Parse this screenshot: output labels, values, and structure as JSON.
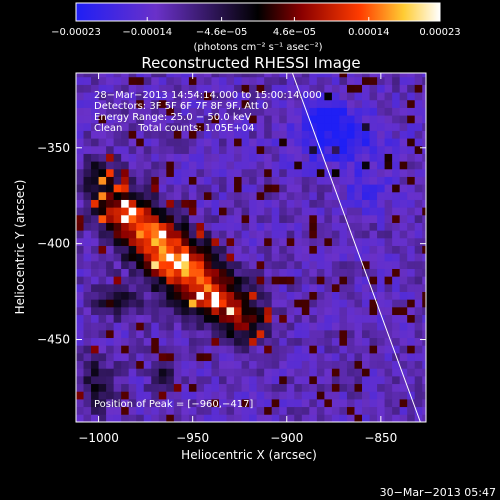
{
  "chart_data": {
    "type": "heatmap",
    "title": "Reconstructed RHESSI Image",
    "xlabel": "Heliocentric X (arcsec)",
    "ylabel": "Heliocentric Y (arcsec)",
    "xlim": [
      -1012,
      -826
    ],
    "ylim": [
      -493,
      -311
    ],
    "x_ticks": [
      -1000,
      -950,
      -900,
      -850
    ],
    "y_ticks": [
      -450,
      -400,
      -350
    ],
    "x_tick_labels": [
      "−1000",
      "−950",
      "−900",
      "−850"
    ],
    "y_tick_labels": [
      "−450",
      "−400",
      "−350"
    ],
    "colorbar": {
      "min": -0.00023,
      "max": 0.00023,
      "ticks": [
        -0.00023,
        -0.00014,
        -4.6e-05,
        4.6e-05,
        0.00014,
        0.00023
      ],
      "tick_labels": [
        "−0.00023",
        "−0.00014",
        "−4.6e−05",
        "4.6e−05",
        "0.00014",
        "0.00023"
      ],
      "unit_label": "(photons cm⁻² s⁻¹ asec⁻²)",
      "colors": [
        "#1f1ff5",
        "#6a31c9",
        "#000000",
        "#8a0000",
        "#ff3c00",
        "#ffcc33",
        "#ffffff"
      ]
    },
    "annotations": [
      "28−Mar−2013 14:54:14.000 to 15:00:14.000",
      "Detectors: 3F 5F 6F 7F 8F 9F, Att 0",
      "Energy Range: 25.0 − 50.0 keV",
      "Clean     Total counts: 1.05E+04"
    ],
    "peak_label": "Position of Peak = [−960,−417]",
    "peak": [
      -960,
      -417
    ],
    "limb_line": [
      [
        -897,
        -311
      ],
      [
        -829,
        -493
      ]
    ],
    "background_level": -0.00012,
    "sources": [
      {
        "x": -987,
        "y": -383,
        "sx": 10,
        "sy": 8,
        "amp": 0.00021
      },
      {
        "x": -972,
        "y": -396,
        "sx": 11,
        "sy": 9,
        "amp": 0.00023
      },
      {
        "x": -955,
        "y": -412,
        "sx": 12,
        "sy": 10,
        "amp": 0.00026
      },
      {
        "x": -938,
        "y": -428,
        "sx": 11,
        "sy": 9,
        "amp": 0.00021
      },
      {
        "x": -922,
        "y": -441,
        "sx": 9,
        "sy": 8,
        "amp": 0.00014
      },
      {
        "x": -1000,
        "y": -365,
        "sx": 7,
        "sy": 8,
        "amp": 0.00013
      },
      {
        "x": -990,
        "y": -430,
        "sx": 8,
        "sy": 6,
        "amp": 0.00012
      },
      {
        "x": -1000,
        "y": -472,
        "sx": 6,
        "sy": 10,
        "amp": 0.0001
      },
      {
        "x": -965,
        "y": -470,
        "sx": 5,
        "sy": 5,
        "amp": 9e-05
      },
      {
        "x": -872,
        "y": -345,
        "sx": 16,
        "sy": 10,
        "amp": -0.0001
      },
      {
        "x": -880,
        "y": -333,
        "sx": 8,
        "sy": 6,
        "amp": -0.0001
      },
      {
        "x": -858,
        "y": -372,
        "sx": 8,
        "sy": 7,
        "amp": -6e-05
      }
    ],
    "footer_date": "30−Mar−2013 05:47"
  }
}
